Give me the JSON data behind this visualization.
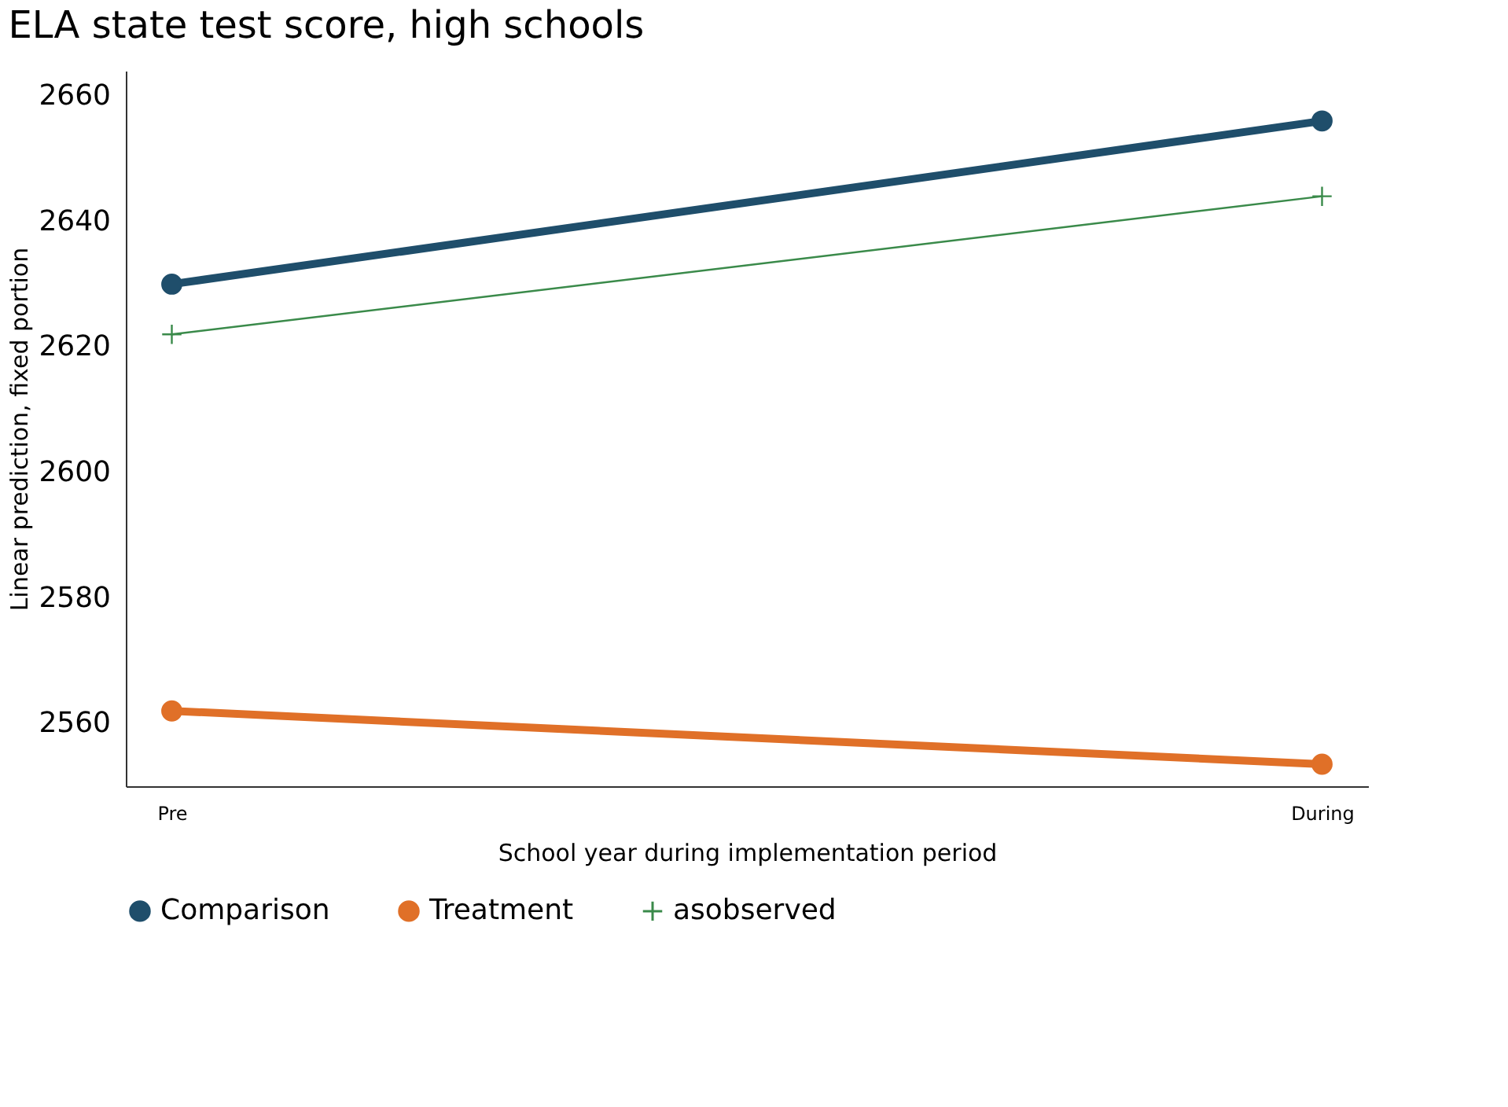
{
  "chart_data": {
    "type": "line",
    "title": "ELA state test score, high schools",
    "xlabel": "School year during implementation period",
    "ylabel": "Linear prediction, fixed portion",
    "categories": [
      "Pre",
      "During"
    ],
    "series": [
      {
        "name": "Comparison",
        "color": "#1f4e6b",
        "marker": "circle",
        "values": [
          2630,
          2656
        ]
      },
      {
        "name": "Treatment",
        "color": "#e07028",
        "marker": "circle",
        "values": [
          2562,
          2553.5
        ]
      },
      {
        "name": "asobserved",
        "color": "#3a8a4a",
        "marker": "cross",
        "values": [
          2622,
          2644
        ]
      }
    ],
    "ylim": [
      2550,
      2664
    ],
    "yticks": [
      2560,
      2580,
      2600,
      2620,
      2640,
      2660
    ],
    "grid": false,
    "legend": "bottom"
  }
}
